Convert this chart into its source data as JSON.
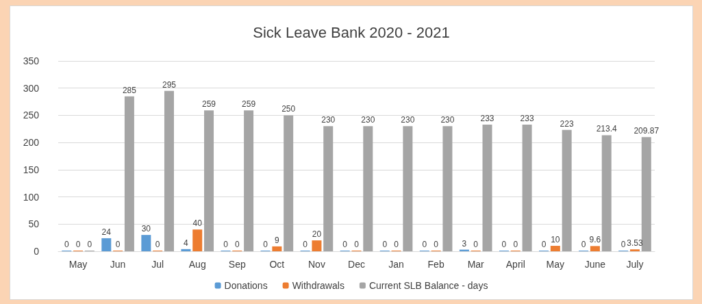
{
  "chart_data": {
    "type": "bar",
    "title": "Sick Leave Bank 2020 - 2021",
    "categories": [
      "May",
      "Jun",
      "Jul",
      "Aug",
      "Sep",
      "Oct",
      "Nov",
      "Dec",
      "Jan",
      "Feb",
      "Mar",
      "April",
      "May",
      "June",
      "July"
    ],
    "series": [
      {
        "name": "Donations",
        "color": "#5b9bd5",
        "values": [
          0,
          24,
          30,
          4,
          0,
          0,
          0,
          0,
          0,
          0,
          3,
          0,
          0,
          0,
          0
        ]
      },
      {
        "name": "Withdrawals",
        "color": "#ed7d31",
        "values": [
          0,
          0,
          0,
          40,
          0,
          9,
          20,
          0,
          0,
          0,
          0,
          0,
          10,
          9.6,
          3.53
        ]
      },
      {
        "name": "Current SLB Balance - days",
        "color": "#a5a5a5",
        "values": [
          0,
          285,
          295,
          259,
          259,
          250,
          230,
          230,
          230,
          230,
          233,
          233,
          223,
          213.4,
          209.87
        ]
      }
    ],
    "ylim": [
      0,
      350
    ],
    "yticks": [
      0,
      50,
      100,
      150,
      200,
      250,
      300,
      350
    ],
    "grid": "y",
    "legend": "bottom",
    "data_labels": true
  }
}
